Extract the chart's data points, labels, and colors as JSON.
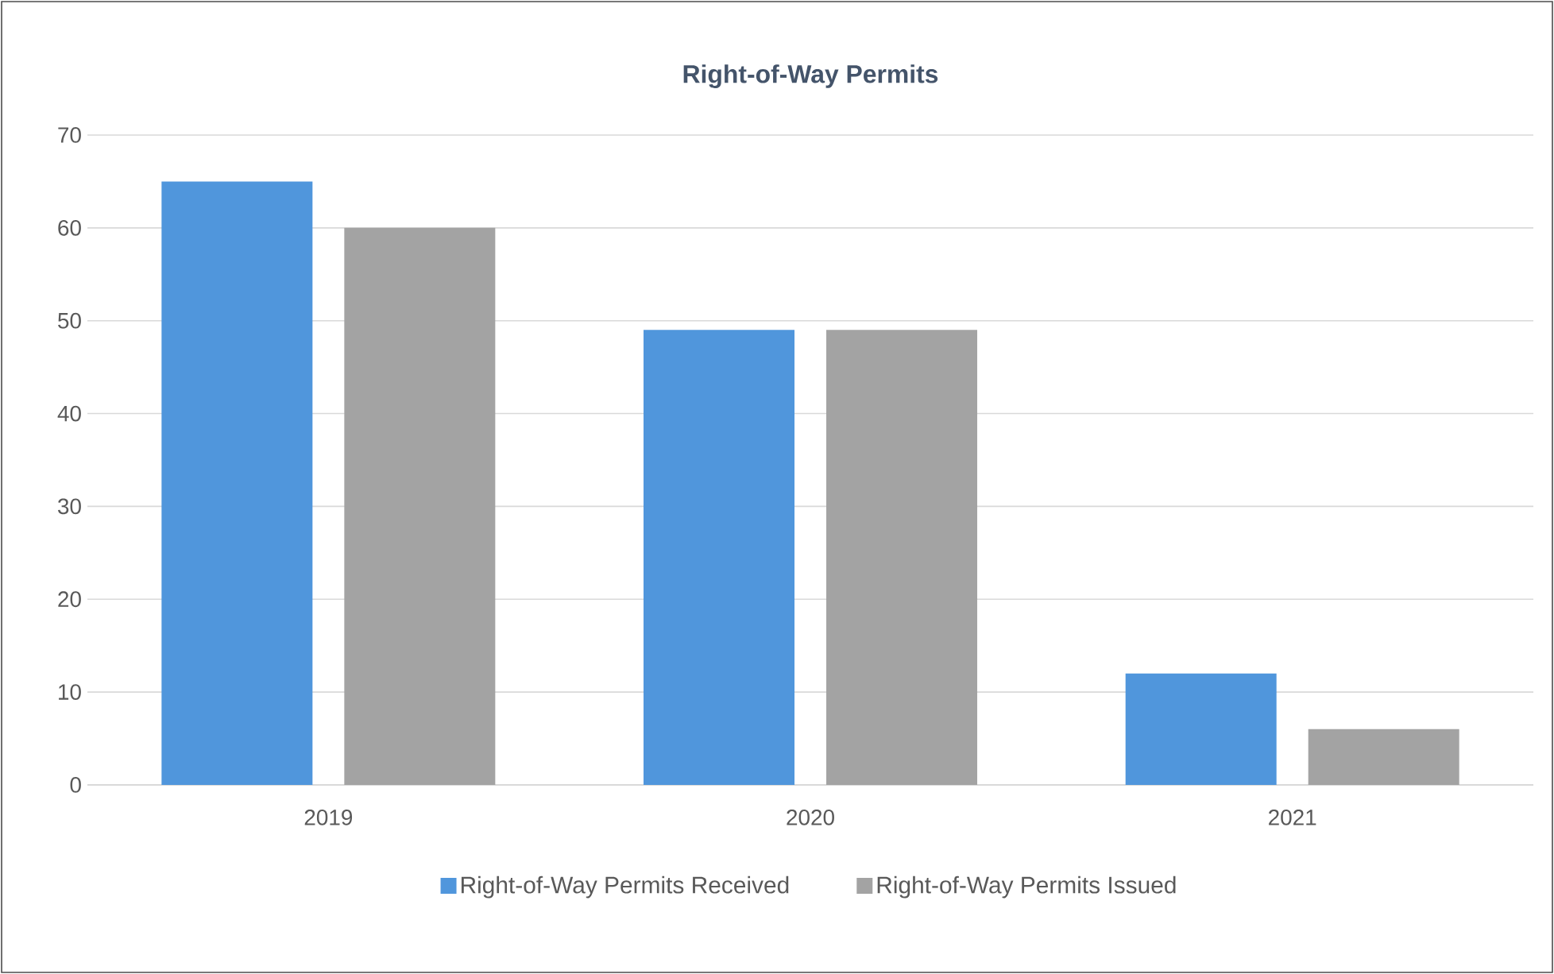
{
  "chart_data": {
    "type": "bar",
    "title": "Right-of-Way Permits",
    "categories": [
      "2019",
      "2020",
      "2021"
    ],
    "series": [
      {
        "name": "Right-of-Way Permits Received",
        "color": "#5096dc",
        "values": [
          65,
          49,
          12
        ]
      },
      {
        "name": "Right-of-Way Permits Issued",
        "color": "#a3a3a3",
        "values": [
          60,
          49,
          6
        ]
      }
    ],
    "ylim": [
      0,
      70
    ],
    "yticks": [
      0,
      10,
      20,
      30,
      40,
      50,
      60,
      70
    ],
    "grid": "y",
    "legend": "bottom"
  }
}
